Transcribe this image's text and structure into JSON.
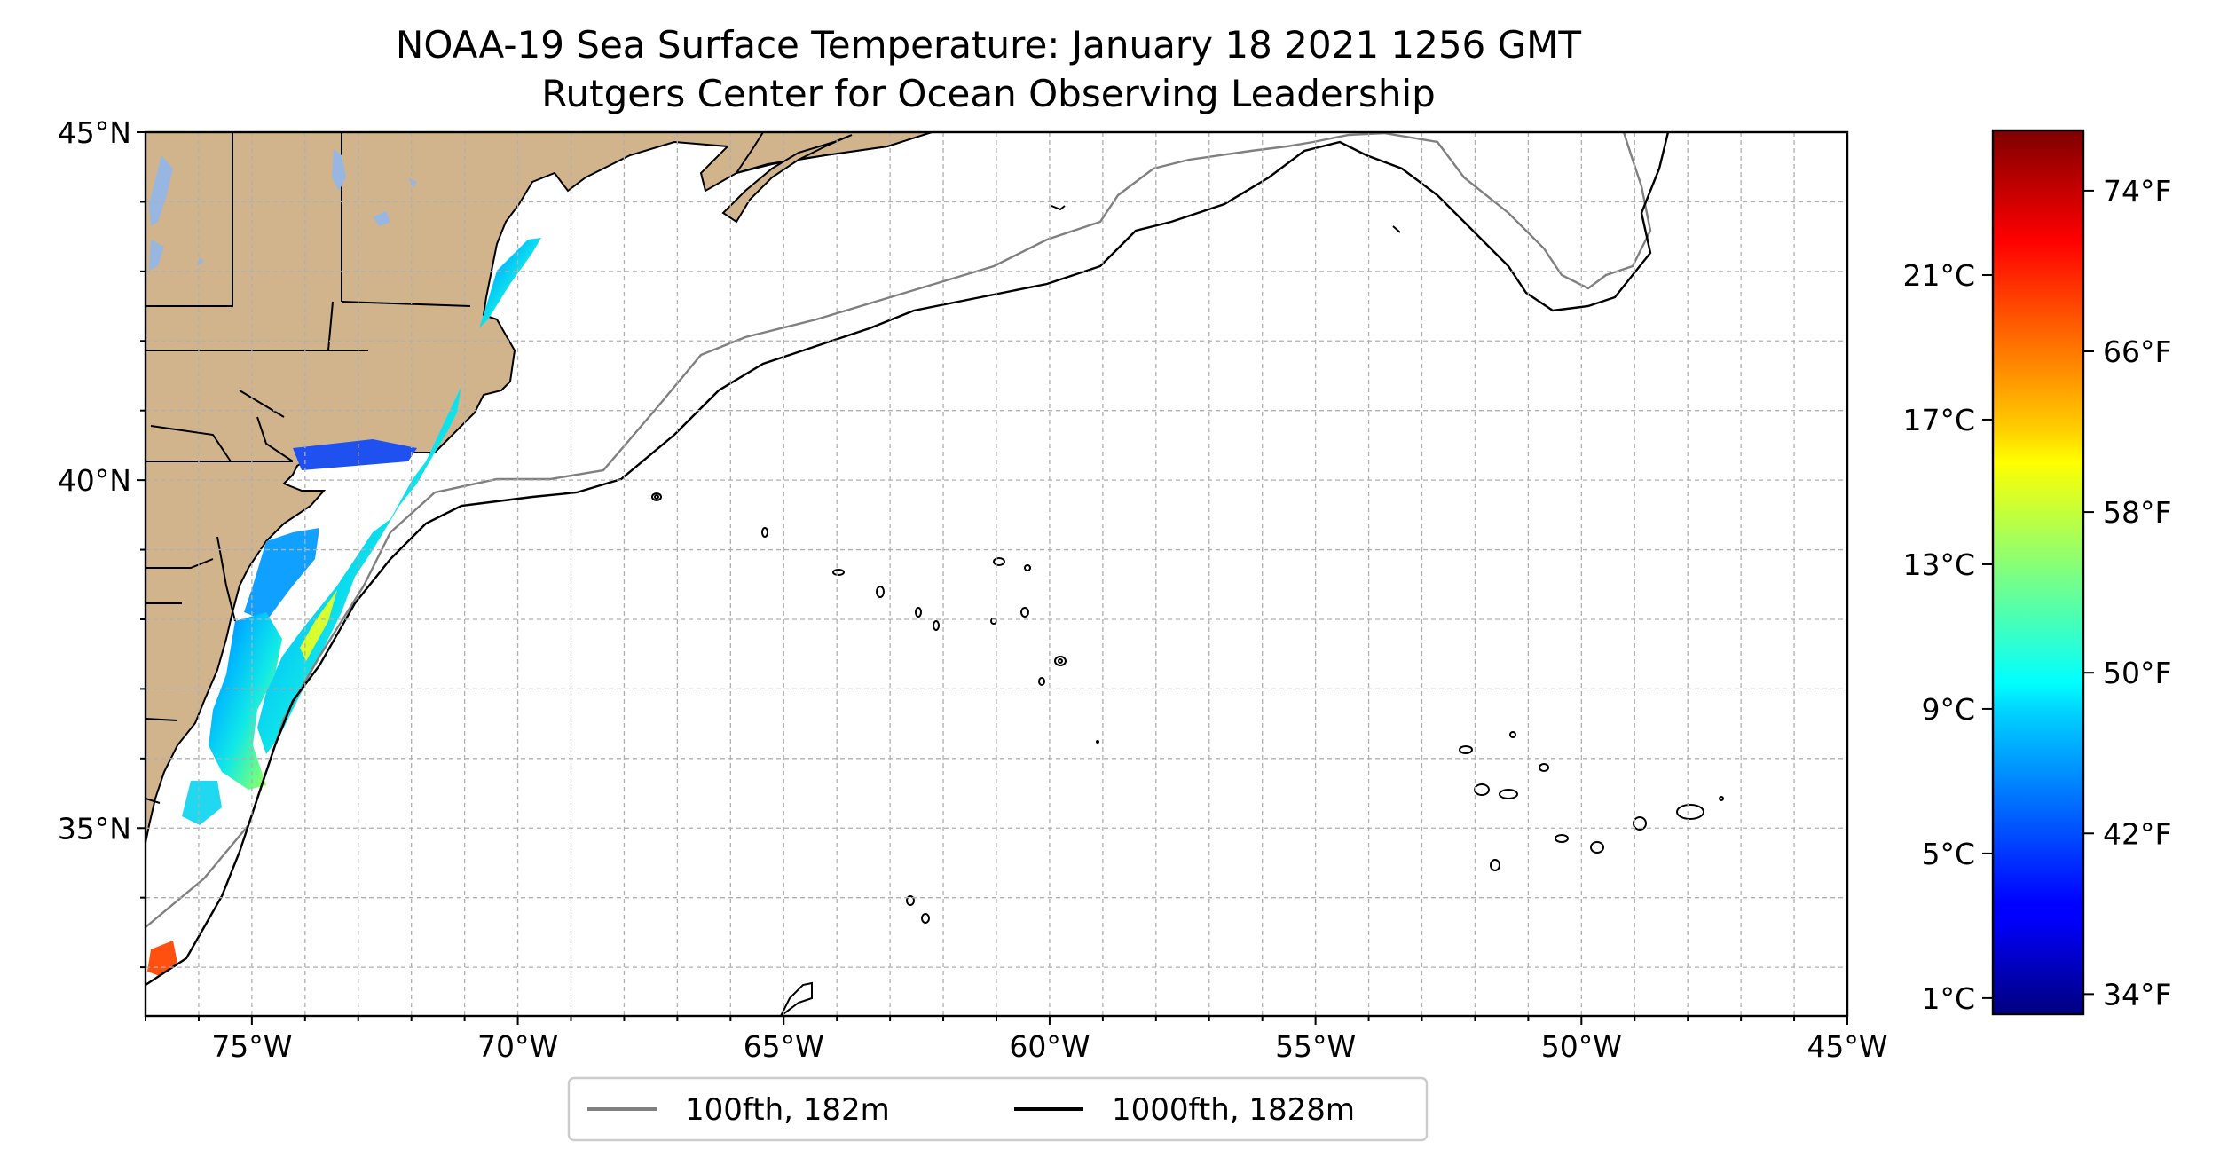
{
  "title": {
    "line1": "NOAA-19 Sea Surface Temperature: January 18 2021 1256 GMT",
    "line2": "Rutgers Center for Ocean Observing Leadership"
  },
  "map": {
    "projection": "PlateCarree",
    "lon_range": [
      -77,
      -45
    ],
    "lat_range": [
      32.3,
      45
    ],
    "x_ticks": [
      {
        "value": -75,
        "label": "75°W"
      },
      {
        "value": -70,
        "label": "70°W"
      },
      {
        "value": -65,
        "label": "65°W"
      },
      {
        "value": -60,
        "label": "60°W"
      },
      {
        "value": -55,
        "label": "55°W"
      },
      {
        "value": -50,
        "label": "50°W"
      },
      {
        "value": -45,
        "label": "45°W"
      }
    ],
    "y_ticks": [
      {
        "value": 45,
        "label": "45°N"
      },
      {
        "value": 40,
        "label": "40°N"
      },
      {
        "value": 35,
        "label": "35°N"
      }
    ],
    "gridlines": true,
    "land_color": "#d2b48c",
    "water_body_color": "#97b6e1",
    "shelf_100fth_color": "#808080",
    "slope_1000fth_color": "#000000"
  },
  "legend": {
    "placement": "below-map",
    "items": [
      {
        "label": "100fth, 182m",
        "color": "#808080"
      },
      {
        "label": "1000fth, 1828m",
        "color": "#000000"
      }
    ]
  },
  "colorbar": {
    "colormap": "jet",
    "range_f": [
      33,
      77
    ],
    "celsius_ticks": [
      {
        "value": 1,
        "label": "1°C"
      },
      {
        "value": 5,
        "label": "5°C"
      },
      {
        "value": 9,
        "label": "9°C"
      },
      {
        "value": 13,
        "label": "13°C"
      },
      {
        "value": 17,
        "label": "17°C"
      },
      {
        "value": 21,
        "label": "21°C"
      }
    ],
    "fahrenheit_ticks": [
      {
        "value": 34,
        "label": "34°F"
      },
      {
        "value": 42,
        "label": "42°F"
      },
      {
        "value": 50,
        "label": "50°F"
      },
      {
        "value": 58,
        "label": "58°F"
      },
      {
        "value": 66,
        "label": "66°F"
      },
      {
        "value": 74,
        "label": "74°F"
      }
    ]
  }
}
